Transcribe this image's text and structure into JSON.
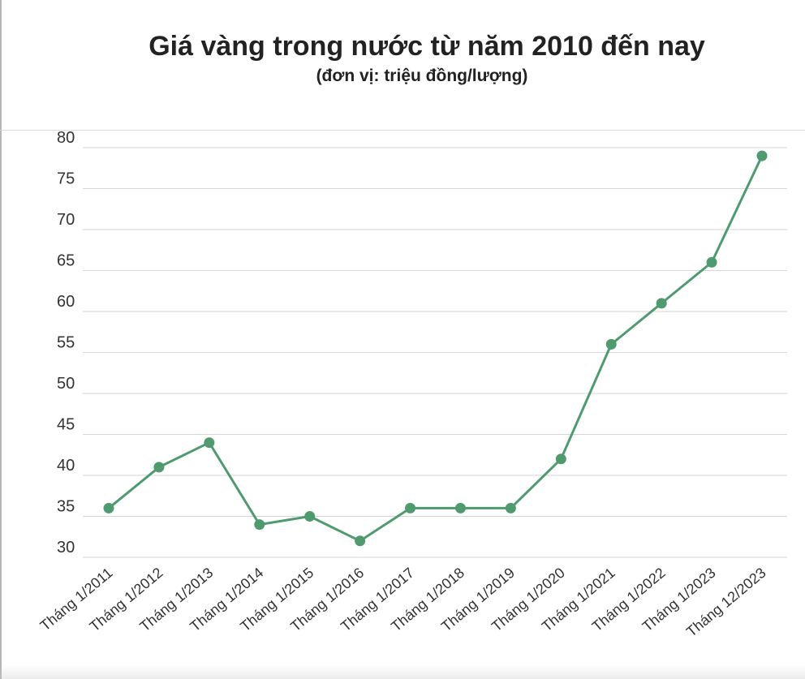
{
  "chart_data": {
    "type": "line",
    "title": "Giá vàng trong nước từ năm 2010 đến nay",
    "subtitle": "(đơn vị: triệu đồng/lượng)",
    "xlabel": "",
    "ylabel": "",
    "categories": [
      "Tháng 1/2011",
      "Tháng 1/2012",
      "Tháng 1/2013",
      "Tháng 1/2014",
      "Tháng 1/2015",
      "Tháng 1/2016",
      "Tháng 1/2017",
      "Tháng 1/2018",
      "Tháng 1/2019",
      "Tháng 1/2020",
      "Tháng 1/2021",
      "Tháng 1/2022",
      "Tháng 1/2023",
      "Tháng 12/2023"
    ],
    "series": [
      {
        "values": [
          36,
          41,
          44,
          34,
          35,
          32,
          36,
          36,
          36,
          42,
          56,
          61,
          66,
          79
        ]
      }
    ],
    "ylim": [
      30,
      80
    ],
    "yticks": [
      30,
      35,
      40,
      45,
      50,
      55,
      60,
      65,
      70,
      75,
      80
    ],
    "grid": true,
    "legend": "none",
    "colors": {
      "line": "#4f9a6e",
      "point": "#4f9a6e",
      "grid": "#d6d6d6"
    }
  }
}
